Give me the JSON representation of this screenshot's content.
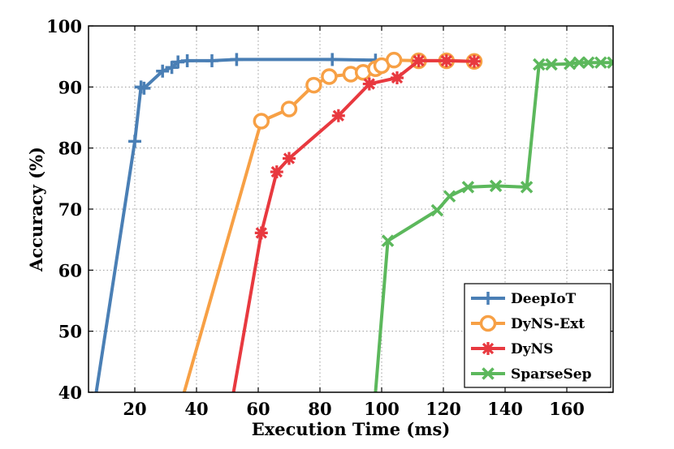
{
  "chart_data": {
    "type": "line",
    "title": "",
    "xlabel": "Execution Time (ms)",
    "ylabel": "Accuracy (%)",
    "xlim": [
      5,
      175
    ],
    "ylim": [
      40,
      100
    ],
    "xticks": [
      20,
      40,
      60,
      80,
      100,
      120,
      140,
      160
    ],
    "yticks": [
      40,
      50,
      60,
      70,
      80,
      90,
      100
    ],
    "grid": true,
    "legend_position": "bottom-right",
    "series": [
      {
        "name": "DeepIoT",
        "color": "#4a7fb5",
        "marker": "plus",
        "x": [
          7.5,
          20,
          22,
          23,
          29,
          32,
          34,
          37,
          45,
          53,
          84,
          98
        ],
        "y": [
          40,
          81.1,
          90,
          89.8,
          92.6,
          93.2,
          94.1,
          94.3,
          94.3,
          94.5,
          94.5,
          94.4
        ]
      },
      {
        "name": "DyNS-Ext",
        "color": "#f7a045",
        "marker": "circle",
        "x": [
          36,
          61,
          70,
          78,
          83,
          90,
          94,
          98,
          100,
          104,
          112,
          121,
          130
        ],
        "y": [
          40,
          84.4,
          86.4,
          90.3,
          91.7,
          92.1,
          92.4,
          93.0,
          93.5,
          94.4,
          94.3,
          94.3,
          94.2
        ]
      },
      {
        "name": "DyNS",
        "color": "#e8393f",
        "marker": "asterisk",
        "x": [
          52,
          61,
          66,
          70,
          86,
          96,
          105,
          112,
          121,
          130
        ],
        "y": [
          40,
          66.1,
          76.1,
          78.3,
          85.3,
          90.5,
          91.5,
          94.3,
          94.3,
          94.2
        ]
      },
      {
        "name": "SparseSep",
        "color": "#5cb85c",
        "marker": "x",
        "x": [
          98,
          102,
          118,
          122,
          128,
          137,
          147,
          151,
          155,
          161,
          164,
          167,
          171,
          175
        ],
        "y": [
          40,
          64.8,
          69.8,
          72.1,
          73.6,
          73.8,
          73.6,
          93.7,
          93.7,
          93.8,
          94.0,
          94.0,
          94.0,
          94.0
        ]
      }
    ]
  }
}
